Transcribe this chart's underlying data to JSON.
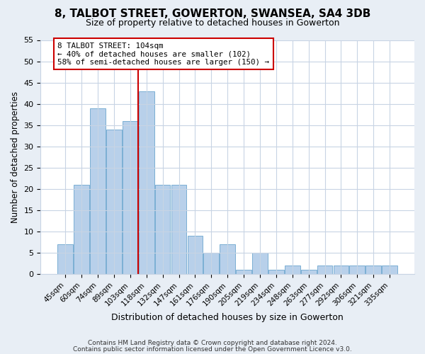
{
  "title": "8, TALBOT STREET, GOWERTON, SWANSEA, SA4 3DB",
  "subtitle": "Size of property relative to detached houses in Gowerton",
  "xlabel": "Distribution of detached houses by size in Gowerton",
  "ylabel": "Number of detached properties",
  "bar_labels": [
    "45sqm",
    "60sqm",
    "74sqm",
    "89sqm",
    "103sqm",
    "118sqm",
    "132sqm",
    "147sqm",
    "161sqm",
    "176sqm",
    "190sqm",
    "205sqm",
    "219sqm",
    "234sqm",
    "248sqm",
    "263sqm",
    "277sqm",
    "292sqm",
    "306sqm",
    "321sqm",
    "335sqm"
  ],
  "bar_values": [
    7,
    21,
    39,
    34,
    36,
    43,
    21,
    21,
    9,
    5,
    7,
    1,
    5,
    1,
    2,
    1,
    2,
    2,
    2,
    2,
    2
  ],
  "bar_color": "#b8d0ea",
  "bar_edge_color": "#7aafd4",
  "vline_color": "#cc0000",
  "ylim": [
    0,
    55
  ],
  "yticks": [
    0,
    5,
    10,
    15,
    20,
    25,
    30,
    35,
    40,
    45,
    50,
    55
  ],
  "annotation_title": "8 TALBOT STREET: 104sqm",
  "annotation_line1": "← 40% of detached houses are smaller (102)",
  "annotation_line2": "58% of semi-detached houses are larger (150) →",
  "footer_line1": "Contains HM Land Registry data © Crown copyright and database right 2024.",
  "footer_line2": "Contains public sector information licensed under the Open Government Licence v3.0.",
  "bg_color": "#e8eef5",
  "plot_bg_color": "#ffffff",
  "grid_color": "#c8d4e4",
  "vline_bar_index": 4
}
